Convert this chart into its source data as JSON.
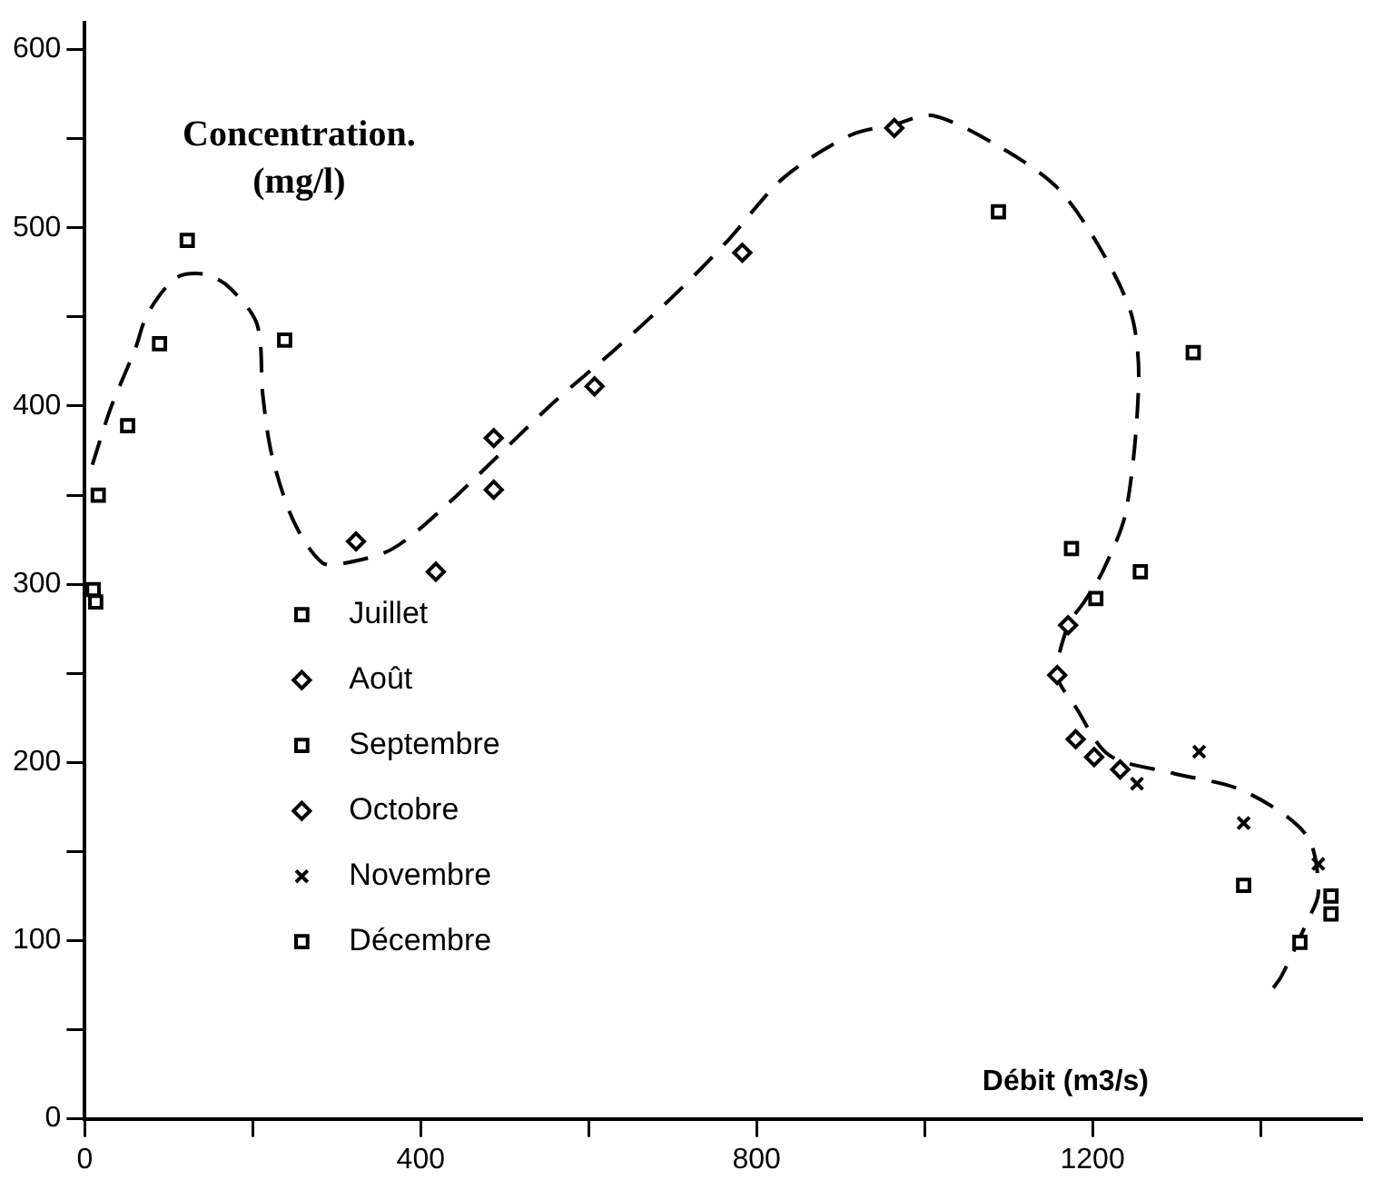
{
  "chart_data": {
    "type": "scatter",
    "ylabel": "Concentration.\n(mg/l)",
    "xlabel": "Débit (m3/s)",
    "xlim": [
      0,
      1520
    ],
    "ylim": [
      0,
      615
    ],
    "xticks": [
      0,
      {
        "value": 200,
        "label": null
      },
      400,
      {
        "value": 600,
        "label": null
      },
      800,
      {
        "value": 1000,
        "label": null
      },
      1200,
      {
        "value": 1400,
        "label": null
      }
    ],
    "yticks": [
      0,
      {
        "value": 50,
        "label": null
      },
      100,
      {
        "value": 150,
        "label": null
      },
      200,
      {
        "value": 250,
        "label": null
      },
      300,
      {
        "value": 350,
        "label": null
      },
      400,
      {
        "value": 450,
        "label": null
      },
      500,
      {
        "value": 550,
        "label": null
      },
      600
    ],
    "grid": false,
    "legend": "bottom left",
    "series": [
      {
        "name": "Juillet",
        "color": "#000000",
        "marker": "square",
        "x": [
          122,
          89,
          238,
          51,
          16,
          13,
          10
        ],
        "values": [
          493,
          435,
          437,
          389,
          350,
          290,
          297
        ]
      },
      {
        "name": "Août",
        "color": "#000000",
        "marker": "diamond",
        "x": [
          323,
          418,
          487,
          487,
          607,
          783,
          964,
          1171
        ],
        "values": [
          324,
          307,
          382,
          353,
          411,
          486,
          556,
          277
        ]
      },
      {
        "name": "Septembre",
        "color": "#000000",
        "marker": "square",
        "x": [
          1088,
          1175,
          1257,
          1204,
          1320
        ],
        "values": [
          509,
          320,
          307,
          292,
          430
        ]
      },
      {
        "name": "Octobre",
        "color": "#000000",
        "marker": "diamond",
        "x": [
          1158,
          1180,
          1202,
          1233
        ],
        "values": [
          249,
          213,
          203,
          196
        ]
      },
      {
        "name": "Novembre",
        "color": "#000000",
        "marker": "cross",
        "x": [
          1253,
          1327,
          1380,
          1469
        ],
        "values": [
          188,
          206,
          166,
          143
        ]
      },
      {
        "name": "Décembre",
        "color": "#000000",
        "marker": "square",
        "x": [
          1380,
          1447,
          1484,
          1484
        ],
        "values": [
          131,
          99,
          125,
          115
        ]
      },
      {
        "type": "line",
        "color": "#000000",
        "marker": "none",
        "line_style": "dashed",
        "x": [
          9,
          31,
          60,
          75,
          109,
          142,
          171,
          205,
          212,
          223,
          249,
          283,
          312,
          367,
          432,
          556,
          632,
          706,
          766,
          832,
          912,
          964,
          1010,
          1091,
          1157,
          1206,
          1246,
          1255,
          1240,
          1213,
          1190,
          1171,
          1158,
          1180,
          1220,
          1295,
          1380,
          1455,
          1469,
          1455,
          1425,
          1413
        ],
        "values": [
          367,
          399,
          432,
          452,
          472,
          474,
          467,
          446,
          406,
          372,
          335,
          312,
          312,
          320,
          345,
          401,
          432,
          464,
          493,
          528,
          552,
          558,
          563,
          545,
          523,
          491,
          452,
          414,
          341,
          308,
          290,
          277,
          249,
          231,
          204,
          194,
          184,
          159,
          127,
          110,
          80,
          72
        ]
      }
    ]
  }
}
